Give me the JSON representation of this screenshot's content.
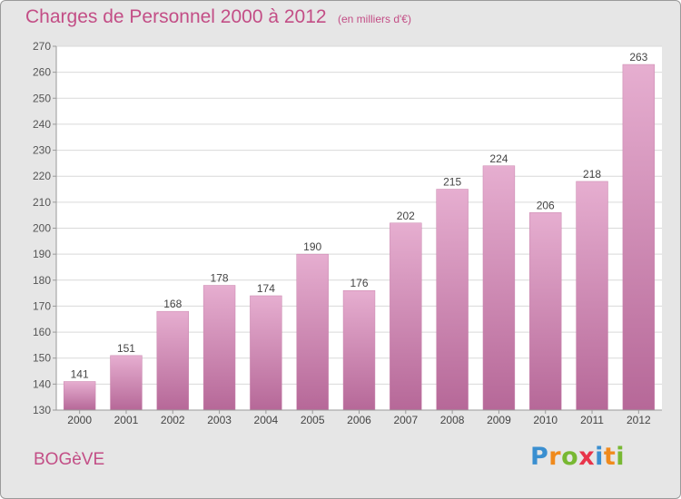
{
  "title": "Charges de Personnel 2000 à 2012",
  "subtitle": "(en milliers d'€)",
  "commune": "BOGèVE",
  "logo": {
    "text": "Proxiti",
    "letters": [
      {
        "ch": "P",
        "color": "#3a8fd0"
      },
      {
        "ch": "r",
        "color": "#f08a1c"
      },
      {
        "ch": "o",
        "color": "#78b832"
      },
      {
        "ch": "x",
        "color": "#e8344a"
      },
      {
        "ch": "i",
        "color": "#3a8fd0"
      },
      {
        "ch": "t",
        "color": "#f08a1c"
      },
      {
        "ch": "i",
        "color": "#78b832"
      }
    ]
  },
  "colors": {
    "accent": "#c34e86",
    "bar": "#d88db6",
    "bar_light": "#e6aed0",
    "bar_dark": "#b66898",
    "background": "#e6e6e6",
    "plot_background": "#ffffff",
    "grid": "#d9d9d9"
  },
  "chart_data": {
    "type": "bar",
    "title": "Charges de Personnel 2000 à 2012",
    "subtitle": "(en milliers d'€)",
    "categories": [
      "2000",
      "2001",
      "2002",
      "2003",
      "2004",
      "2005",
      "2006",
      "2007",
      "2008",
      "2009",
      "2010",
      "2011",
      "2012"
    ],
    "values": [
      141,
      151,
      168,
      178,
      174,
      190,
      176,
      202,
      215,
      224,
      206,
      218,
      263
    ],
    "ylim": [
      130,
      270
    ],
    "yticks": [
      130,
      140,
      150,
      160,
      170,
      180,
      190,
      200,
      210,
      220,
      230,
      240,
      250,
      260,
      270
    ],
    "grid": true,
    "data_labels": true,
    "xlabel": "",
    "ylabel": ""
  }
}
